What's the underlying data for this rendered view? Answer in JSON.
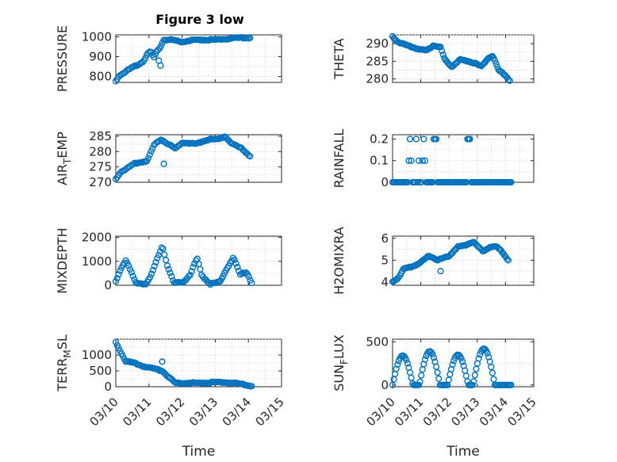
{
  "figure_title": "Figure 3 low",
  "colors": {
    "marker": "#0072BD",
    "axis": "#262626",
    "grid": "#cfcfcf"
  },
  "chart_data": [
    {
      "type": "scatter",
      "title": "Figure 3 low",
      "ylabel": "PRESSURE",
      "ylabel_main": "PRESSURE",
      "ylabel_sub": "",
      "ylabel_rest": "",
      "xlabel": "",
      "ylim": [
        770,
        1010
      ],
      "yticks": [
        800,
        900,
        1000
      ],
      "ytick_labels": [
        "800",
        "900",
        "1000"
      ],
      "xlim": [
        0,
        5
      ],
      "xtick_labels": [],
      "grid": true,
      "keys": [
        [
          0.0,
          775
        ],
        [
          0.1,
          805
        ],
        [
          0.25,
          820
        ],
        [
          0.4,
          835
        ],
        [
          0.55,
          850
        ],
        [
          0.7,
          860
        ],
        [
          0.85,
          880
        ],
        [
          0.95,
          915
        ],
        [
          1.05,
          925
        ],
        [
          1.15,
          895
        ],
        [
          1.25,
          930
        ],
        [
          1.35,
          950
        ],
        [
          1.45,
          985
        ],
        [
          1.7,
          985
        ],
        [
          2.0,
          975
        ],
        [
          2.4,
          985
        ],
        [
          3.0,
          985
        ],
        [
          3.4,
          990
        ],
        [
          3.7,
          995
        ],
        [
          4.05,
          995
        ]
      ]
    },
    {
      "type": "scatter",
      "title": "",
      "ylabel": "THETA",
      "ylabel_main": "THETA",
      "ylabel_sub": "",
      "ylabel_rest": "",
      "xlabel": "",
      "ylim": [
        279,
        292.5
      ],
      "yticks": [
        280,
        285,
        290
      ],
      "ytick_labels": [
        "280",
        "285",
        "290"
      ],
      "xlim": [
        0,
        5
      ],
      "xtick_labels": [],
      "grid": true,
      "keys": [
        [
          0.0,
          292
        ],
        [
          0.2,
          290.5
        ],
        [
          0.5,
          289.5
        ],
        [
          0.9,
          288.5
        ],
        [
          1.2,
          288
        ],
        [
          1.45,
          289.5
        ],
        [
          1.7,
          289
        ],
        [
          1.85,
          285.5
        ],
        [
          2.1,
          283.5
        ],
        [
          2.4,
          285.5
        ],
        [
          2.7,
          285
        ],
        [
          2.9,
          284.5
        ],
        [
          3.15,
          283.5
        ],
        [
          3.4,
          286
        ],
        [
          3.55,
          286.5
        ],
        [
          3.75,
          282.5
        ],
        [
          4.0,
          281
        ],
        [
          4.15,
          279.5
        ]
      ]
    },
    {
      "type": "scatter",
      "title": "",
      "ylabel": "AIR_TEMP",
      "ylabel_main": "AIR",
      "ylabel_sub": "T",
      "ylabel_rest": "EMP",
      "xlabel": "",
      "ylim": [
        270,
        285.5
      ],
      "yticks": [
        270,
        275,
        280,
        285
      ],
      "ytick_labels": [
        "270",
        "275",
        "280",
        "285"
      ],
      "xlim": [
        0,
        5
      ],
      "xtick_labels": [],
      "grid": true,
      "keys": [
        [
          0.0,
          271
        ],
        [
          0.15,
          273.5
        ],
        [
          0.35,
          274.5
        ],
        [
          0.55,
          276
        ],
        [
          0.75,
          276.5
        ],
        [
          0.95,
          277
        ],
        [
          1.15,
          282
        ],
        [
          1.35,
          284
        ],
        [
          1.5,
          283
        ],
        [
          1.8,
          281
        ],
        [
          2.0,
          283
        ],
        [
          2.4,
          282.5
        ],
        [
          2.8,
          284
        ],
        [
          3.1,
          284
        ],
        [
          3.3,
          285
        ],
        [
          3.5,
          282.5
        ],
        [
          3.8,
          281
        ],
        [
          4.05,
          278.5
        ]
      ]
    },
    {
      "type": "scatter",
      "title": "",
      "ylabel": "RAINFALL",
      "ylabel_main": "RAINFALL",
      "ylabel_sub": "",
      "ylabel_rest": "",
      "xlabel": "",
      "ylim": [
        0,
        0.22
      ],
      "yticks": [
        0,
        0.1,
        0.2
      ],
      "ytick_labels": [
        "0",
        "0.1",
        "0.2"
      ],
      "xlim": [
        0,
        5
      ],
      "xtick_labels": [],
      "grid": true,
      "keys": [
        [
          0.0,
          0
        ],
        [
          4.2,
          0
        ]
      ]
    },
    {
      "type": "scatter",
      "title": "",
      "ylabel": "MIXDEPTH",
      "ylabel_main": "MIXDEPTH",
      "ylabel_sub": "",
      "ylabel_rest": "",
      "xlabel": "",
      "ylim": [
        0,
        2050
      ],
      "yticks": [
        0,
        1000,
        2000
      ],
      "ytick_labels": [
        "0",
        "1000",
        "2000"
      ],
      "xlim": [
        0,
        5
      ],
      "xtick_labels": [],
      "grid": true,
      "keys": [
        [
          0.0,
          150
        ],
        [
          0.15,
          700
        ],
        [
          0.3,
          1050
        ],
        [
          0.45,
          600
        ],
        [
          0.6,
          100
        ],
        [
          0.9,
          50
        ],
        [
          1.05,
          350
        ],
        [
          1.25,
          1100
        ],
        [
          1.4,
          1650
        ],
        [
          1.55,
          850
        ],
        [
          1.75,
          100
        ],
        [
          2.05,
          150
        ],
        [
          2.25,
          450
        ],
        [
          2.45,
          1150
        ],
        [
          2.6,
          400
        ],
        [
          2.85,
          50
        ],
        [
          3.15,
          150
        ],
        [
          3.35,
          700
        ],
        [
          3.55,
          1150
        ],
        [
          3.75,
          450
        ],
        [
          3.95,
          550
        ],
        [
          4.1,
          100
        ]
      ]
    },
    {
      "type": "scatter",
      "title": "",
      "ylabel": "H2OMIXRA",
      "ylabel_main": "H2OMIXRA",
      "ylabel_sub": "",
      "ylabel_rest": "",
      "xlabel": "",
      "ylim": [
        3.85,
        6.1
      ],
      "yticks": [
        4,
        5,
        6
      ],
      "ytick_labels": [
        "4",
        "5",
        "6"
      ],
      "xlim": [
        0,
        5
      ],
      "xtick_labels": [],
      "grid": true,
      "keys": [
        [
          0.0,
          4.0
        ],
        [
          0.2,
          4.2
        ],
        [
          0.4,
          4.6
        ],
        [
          0.7,
          4.7
        ],
        [
          1.0,
          4.9
        ],
        [
          1.3,
          5.2
        ],
        [
          1.6,
          5.0
        ],
        [
          2.0,
          5.2
        ],
        [
          2.3,
          5.6
        ],
        [
          2.6,
          5.7
        ],
        [
          2.85,
          5.85
        ],
        [
          3.2,
          5.4
        ],
        [
          3.45,
          5.6
        ],
        [
          3.7,
          5.6
        ],
        [
          3.9,
          5.35
        ],
        [
          4.1,
          5.0
        ]
      ]
    },
    {
      "type": "scatter",
      "title": "",
      "ylabel": "TERR_MSL",
      "ylabel_main": "TERR",
      "ylabel_sub": "M",
      "ylabel_rest": "SL",
      "xlabel": "Time",
      "ylim": [
        0,
        1500
      ],
      "yticks": [
        0,
        500,
        1000
      ],
      "ytick_labels": [
        "0",
        "500",
        "1000"
      ],
      "xlim": [
        0,
        5
      ],
      "xtick_labels": [
        "03/10",
        "03/11",
        "03/12",
        "03/13",
        "03/14",
        "03/15"
      ],
      "grid": true,
      "keys": [
        [
          0.0,
          1400
        ],
        [
          0.15,
          1100
        ],
        [
          0.3,
          800
        ],
        [
          0.55,
          750
        ],
        [
          0.8,
          650
        ],
        [
          1.1,
          580
        ],
        [
          1.4,
          500
        ],
        [
          1.6,
          300
        ],
        [
          1.8,
          120
        ],
        [
          2.2,
          120
        ],
        [
          2.6,
          120
        ],
        [
          3.0,
          140
        ],
        [
          3.4,
          130
        ],
        [
          3.8,
          80
        ],
        [
          4.1,
          20
        ]
      ]
    },
    {
      "type": "scatter",
      "title": "",
      "ylabel": "SUN_FLUX",
      "ylabel_main": "SUN",
      "ylabel_sub": "F",
      "ylabel_rest": "LUX",
      "xlabel": "Time",
      "ylim": [
        -20,
        530
      ],
      "yticks": [
        0,
        500
      ],
      "ytick_labels": [
        "0",
        "500"
      ],
      "xlim": [
        0,
        5
      ],
      "xtick_labels": [
        "03/10",
        "03/11",
        "03/12",
        "03/13",
        "03/14",
        "03/15"
      ],
      "grid": true,
      "keys": [
        [
          0.0,
          0
        ],
        [
          4.2,
          0
        ]
      ]
    }
  ]
}
